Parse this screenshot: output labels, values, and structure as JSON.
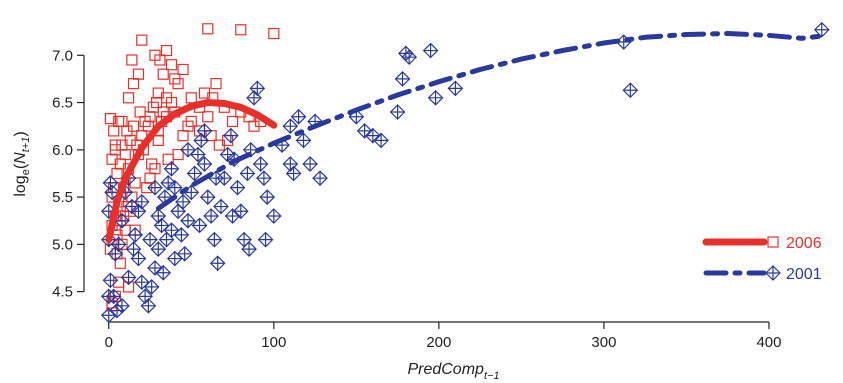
{
  "chart_data": {
    "type": "scatter",
    "xlabel": "PredComp",
    "xlabel_subscript": "t−1",
    "ylabel": "log",
    "ylabel_subscript": "e",
    "ylabel_arg": "N",
    "ylabel_arg_subscript": "t+1",
    "xlim": [
      -15,
      440
    ],
    "ylim": [
      4.2,
      7.5
    ],
    "x_ticks": [
      0,
      100,
      200,
      300,
      400
    ],
    "x_tick_labels": [
      "0",
      "100",
      "200",
      "300",
      "400"
    ],
    "y_ticks": [
      4.5,
      5.0,
      5.5,
      6.0,
      6.5,
      7.0
    ],
    "y_tick_labels": [
      "4.5",
      "5.0",
      "5.5",
      "6.0",
      "6.5",
      "7.0"
    ],
    "grid": false,
    "legend_position": "bottom-right",
    "series": [
      {
        "name": "2006",
        "color": "#e8302a",
        "marker": "square",
        "line_style": "solid",
        "points": [
          [
            2,
            4.35
          ],
          [
            2,
            4.38
          ],
          [
            4,
            4.45
          ],
          [
            6,
            4.6
          ],
          [
            1,
            4.95
          ],
          [
            3,
            5.05
          ],
          [
            5,
            5.1
          ],
          [
            8,
            5.0
          ],
          [
            2,
            5.2
          ],
          [
            4,
            5.3
          ],
          [
            6,
            5.45
          ],
          [
            3,
            5.6
          ],
          [
            5,
            5.75
          ],
          [
            2,
            5.9
          ],
          [
            4,
            6.05
          ],
          [
            6,
            6.3
          ],
          [
            1,
            6.33
          ],
          [
            3,
            6.2
          ],
          [
            8,
            6.05
          ],
          [
            10,
            5.95
          ],
          [
            12,
            5.8
          ],
          [
            9,
            5.6
          ],
          [
            11,
            5.4
          ],
          [
            14,
            5.5
          ],
          [
            7,
            5.25
          ],
          [
            10,
            5.15
          ],
          [
            13,
            5.35
          ],
          [
            16,
            5.65
          ],
          [
            18,
            5.95
          ],
          [
            20,
            6.15
          ],
          [
            15,
            6.25
          ],
          [
            17,
            6.05
          ],
          [
            22,
            6.3
          ],
          [
            19,
            6.4
          ],
          [
            24,
            6.25
          ],
          [
            21,
            6.0
          ],
          [
            26,
            5.85
          ],
          [
            23,
            5.6
          ],
          [
            28,
            5.8
          ],
          [
            30,
            6.1
          ],
          [
            25,
            6.35
          ],
          [
            27,
            6.45
          ],
          [
            32,
            6.3
          ],
          [
            29,
            6.5
          ],
          [
            35,
            6.55
          ],
          [
            33,
            6.4
          ],
          [
            38,
            6.5
          ],
          [
            12,
            6.55
          ],
          [
            15,
            6.7
          ],
          [
            18,
            6.8
          ],
          [
            14,
            6.95
          ],
          [
            20,
            7.16
          ],
          [
            28,
            7.0
          ],
          [
            33,
            6.8
          ],
          [
            30,
            6.6
          ],
          [
            35,
            7.05
          ],
          [
            38,
            6.9
          ],
          [
            40,
            6.75
          ],
          [
            45,
            6.85
          ],
          [
            42,
            6.7
          ],
          [
            31,
            6.95
          ],
          [
            50,
            6.55
          ],
          [
            55,
            6.45
          ],
          [
            58,
            6.6
          ],
          [
            60,
            6.35
          ],
          [
            63,
            6.55
          ],
          [
            65,
            6.7
          ],
          [
            70,
            6.45
          ],
          [
            75,
            6.3
          ],
          [
            80,
            6.4
          ],
          [
            85,
            6.35
          ],
          [
            88,
            6.25
          ],
          [
            55,
            6.2
          ],
          [
            62,
            6.15
          ],
          [
            48,
            6.25
          ],
          [
            67,
            6.05
          ],
          [
            72,
            6.1
          ],
          [
            60,
            7.28
          ],
          [
            80,
            7.27
          ],
          [
            100,
            7.23
          ],
          [
            35,
            6.35
          ],
          [
            30,
            6.2
          ],
          [
            40,
            6.4
          ],
          [
            45,
            6.15
          ],
          [
            50,
            6.3
          ],
          [
            8,
            6.3
          ],
          [
            11,
            6.2
          ],
          [
            13,
            6.1
          ],
          [
            4,
            6.0
          ],
          [
            7,
            5.85
          ],
          [
            2,
            5.5
          ],
          [
            9,
            5.3
          ],
          [
            16,
            5.15
          ],
          [
            5,
            4.9
          ],
          [
            25,
            5.7
          ],
          [
            36,
            5.9
          ],
          [
            42,
            5.95
          ],
          [
            92,
            6.3
          ],
          [
            12,
            4.55
          ],
          [
            7,
            4.8
          ]
        ],
        "fit_curve": [
          [
            0,
            5.05
          ],
          [
            5,
            5.45
          ],
          [
            10,
            5.7
          ],
          [
            20,
            6.02
          ],
          [
            30,
            6.25
          ],
          [
            40,
            6.38
          ],
          [
            50,
            6.46
          ],
          [
            60,
            6.5
          ],
          [
            70,
            6.49
          ],
          [
            80,
            6.45
          ],
          [
            90,
            6.37
          ],
          [
            100,
            6.26
          ]
        ]
      },
      {
        "name": "2001",
        "color": "#2a3a9c",
        "marker": "diamond-plus",
        "line_style": "dashdot",
        "points": [
          [
            0,
            4.25
          ],
          [
            0,
            4.45
          ],
          [
            1,
            4.62
          ],
          [
            0,
            5.05
          ],
          [
            1,
            5.65
          ],
          [
            2,
            5.55
          ],
          [
            0,
            5.35
          ],
          [
            3,
            4.45
          ],
          [
            5,
            4.3
          ],
          [
            4,
            4.9
          ],
          [
            6,
            5.0
          ],
          [
            8,
            5.25
          ],
          [
            10,
            5.55
          ],
          [
            12,
            5.7
          ],
          [
            14,
            5.4
          ],
          [
            16,
            5.1
          ],
          [
            18,
            4.85
          ],
          [
            20,
            4.6
          ],
          [
            22,
            4.45
          ],
          [
            24,
            4.35
          ],
          [
            26,
            4.55
          ],
          [
            28,
            4.75
          ],
          [
            30,
            4.95
          ],
          [
            32,
            5.2
          ],
          [
            34,
            5.5
          ],
          [
            36,
            5.65
          ],
          [
            38,
            5.8
          ],
          [
            40,
            5.6
          ],
          [
            42,
            5.35
          ],
          [
            44,
            5.1
          ],
          [
            46,
            4.9
          ],
          [
            48,
            5.25
          ],
          [
            50,
            5.55
          ],
          [
            52,
            5.75
          ],
          [
            54,
            5.95
          ],
          [
            56,
            6.1
          ],
          [
            58,
            5.85
          ],
          [
            60,
            5.5
          ],
          [
            62,
            5.3
          ],
          [
            64,
            5.05
          ],
          [
            66,
            4.8
          ],
          [
            68,
            5.4
          ],
          [
            70,
            5.7
          ],
          [
            72,
            5.95
          ],
          [
            74,
            6.15
          ],
          [
            76,
            5.9
          ],
          [
            78,
            5.6
          ],
          [
            80,
            5.35
          ],
          [
            82,
            5.05
          ],
          [
            84,
            5.75
          ],
          [
            86,
            6.0
          ],
          [
            88,
            6.55
          ],
          [
            90,
            6.65
          ],
          [
            92,
            5.85
          ],
          [
            94,
            5.7
          ],
          [
            96,
            5.5
          ],
          [
            100,
            5.3
          ],
          [
            105,
            6.05
          ],
          [
            110,
            6.25
          ],
          [
            115,
            6.35
          ],
          [
            110,
            5.85
          ],
          [
            112,
            5.75
          ],
          [
            118,
            6.1
          ],
          [
            122,
            5.85
          ],
          [
            125,
            6.3
          ],
          [
            128,
            5.7
          ],
          [
            150,
            6.35
          ],
          [
            155,
            6.2
          ],
          [
            160,
            6.15
          ],
          [
            165,
            6.1
          ],
          [
            175,
            6.4
          ],
          [
            178,
            6.75
          ],
          [
            180,
            7.02
          ],
          [
            182,
            6.98
          ],
          [
            195,
            7.05
          ],
          [
            198,
            6.55
          ],
          [
            210,
            6.65
          ],
          [
            312,
            7.14
          ],
          [
            316,
            6.63
          ],
          [
            432,
            7.27
          ],
          [
            8,
            4.35
          ],
          [
            12,
            4.65
          ],
          [
            15,
            4.95
          ],
          [
            18,
            5.35
          ],
          [
            25,
            5.05
          ],
          [
            30,
            5.3
          ],
          [
            35,
            5.05
          ],
          [
            40,
            4.85
          ],
          [
            45,
            5.45
          ],
          [
            55,
            5.2
          ],
          [
            65,
            5.7
          ],
          [
            75,
            5.3
          ],
          [
            85,
            4.95
          ],
          [
            95,
            5.05
          ],
          [
            20,
            5.45
          ],
          [
            28,
            5.6
          ],
          [
            33,
            4.7
          ],
          [
            38,
            5.15
          ],
          [
            48,
            6.0
          ],
          [
            58,
            6.2
          ]
        ],
        "fit_curve": [
          [
            30,
            5.38
          ],
          [
            50,
            5.62
          ],
          [
            75,
            5.87
          ],
          [
            100,
            6.07
          ],
          [
            125,
            6.25
          ],
          [
            150,
            6.42
          ],
          [
            175,
            6.58
          ],
          [
            200,
            6.72
          ],
          [
            225,
            6.85
          ],
          [
            250,
            6.96
          ],
          [
            275,
            7.05
          ],
          [
            300,
            7.13
          ],
          [
            325,
            7.19
          ],
          [
            350,
            7.22
          ],
          [
            375,
            7.23
          ],
          [
            400,
            7.21
          ],
          [
            420,
            7.18
          ],
          [
            430,
            7.2
          ]
        ]
      }
    ]
  }
}
